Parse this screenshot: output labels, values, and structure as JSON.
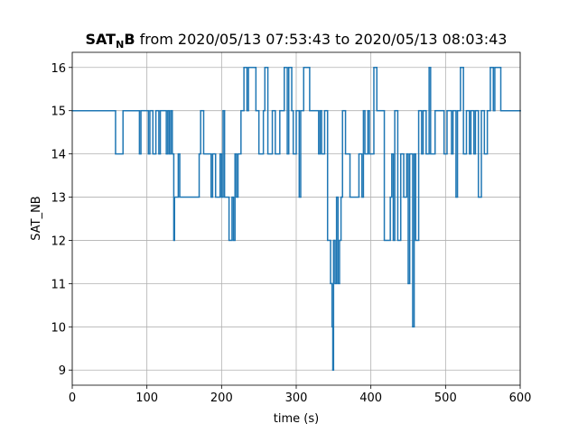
{
  "chart_data": {
    "type": "step",
    "title_parts": [
      "SAT",
      "N",
      "B",
      " from 2020/05/13 07:53:43 to 2020/05/13 08:03:43"
    ],
    "xlabel": "time (s)",
    "ylabel": "SAT_NB",
    "xlim": [
      0,
      600
    ],
    "xticks": [
      0,
      100,
      200,
      300,
      400,
      500,
      600
    ],
    "ylim": [
      8.65,
      16.35
    ],
    "yticks": [
      9,
      10,
      11,
      12,
      13,
      14,
      15,
      16
    ],
    "grid": true,
    "series": [
      {
        "name": "SAT_NB",
        "color": "#1f77b4",
        "x": [
          0,
          58,
          68,
          90,
          92,
          102,
          104,
          108,
          112,
          116,
          118,
          126,
          128,
          130,
          132,
          134,
          136,
          137,
          142,
          144,
          170,
          172,
          176,
          186,
          188,
          192,
          198,
          200,
          202,
          204,
          210,
          214,
          216,
          218,
          220,
          222,
          226,
          230,
          234,
          236,
          246,
          250,
          256,
          258,
          262,
          268,
          272,
          278,
          284,
          288,
          290,
          294,
          296,
          300,
          304,
          306,
          310,
          318,
          330,
          332,
          334,
          338,
          342,
          346,
          348,
          349,
          350,
          352,
          354,
          356,
          358,
          360,
          362,
          366,
          372,
          384,
          388,
          390,
          392,
          396,
          398,
          404,
          408,
          418,
          426,
          428,
          430,
          432,
          436,
          440,
          444,
          448,
          450,
          452,
          456,
          458,
          460,
          464,
          468,
          470,
          474,
          478,
          480,
          486,
          498,
          502,
          508,
          510,
          514,
          516,
          520,
          524,
          528,
          532,
          534,
          538,
          540,
          544,
          548,
          552,
          556,
          560,
          564,
          566,
          574,
          600
        ],
        "values": [
          15,
          14,
          15,
          14,
          15,
          14,
          15,
          14,
          15,
          14,
          15,
          14,
          15,
          14,
          15,
          14,
          12,
          13,
          14,
          13,
          14,
          15,
          14,
          13,
          14,
          13,
          14,
          13,
          15,
          13,
          12,
          13,
          12,
          14,
          13,
          14,
          15,
          16,
          15,
          16,
          15,
          14,
          15,
          16,
          14,
          15,
          14,
          15,
          16,
          14,
          16,
          15,
          14,
          15,
          13,
          15,
          16,
          15,
          14,
          15,
          14,
          15,
          12,
          11,
          10,
          9,
          12,
          11,
          13,
          11,
          12,
          13,
          15,
          14,
          13,
          14,
          13,
          15,
          14,
          15,
          14,
          16,
          15,
          12,
          13,
          14,
          12,
          15,
          12,
          14,
          13,
          14,
          11,
          14,
          10,
          14,
          12,
          15,
          14,
          15,
          14,
          16,
          14,
          15,
          14,
          15,
          14,
          15,
          13,
          15,
          16,
          14,
          15,
          14,
          15,
          14,
          15,
          13,
          15,
          14,
          15,
          16,
          15,
          16,
          15,
          15
        ]
      }
    ]
  }
}
